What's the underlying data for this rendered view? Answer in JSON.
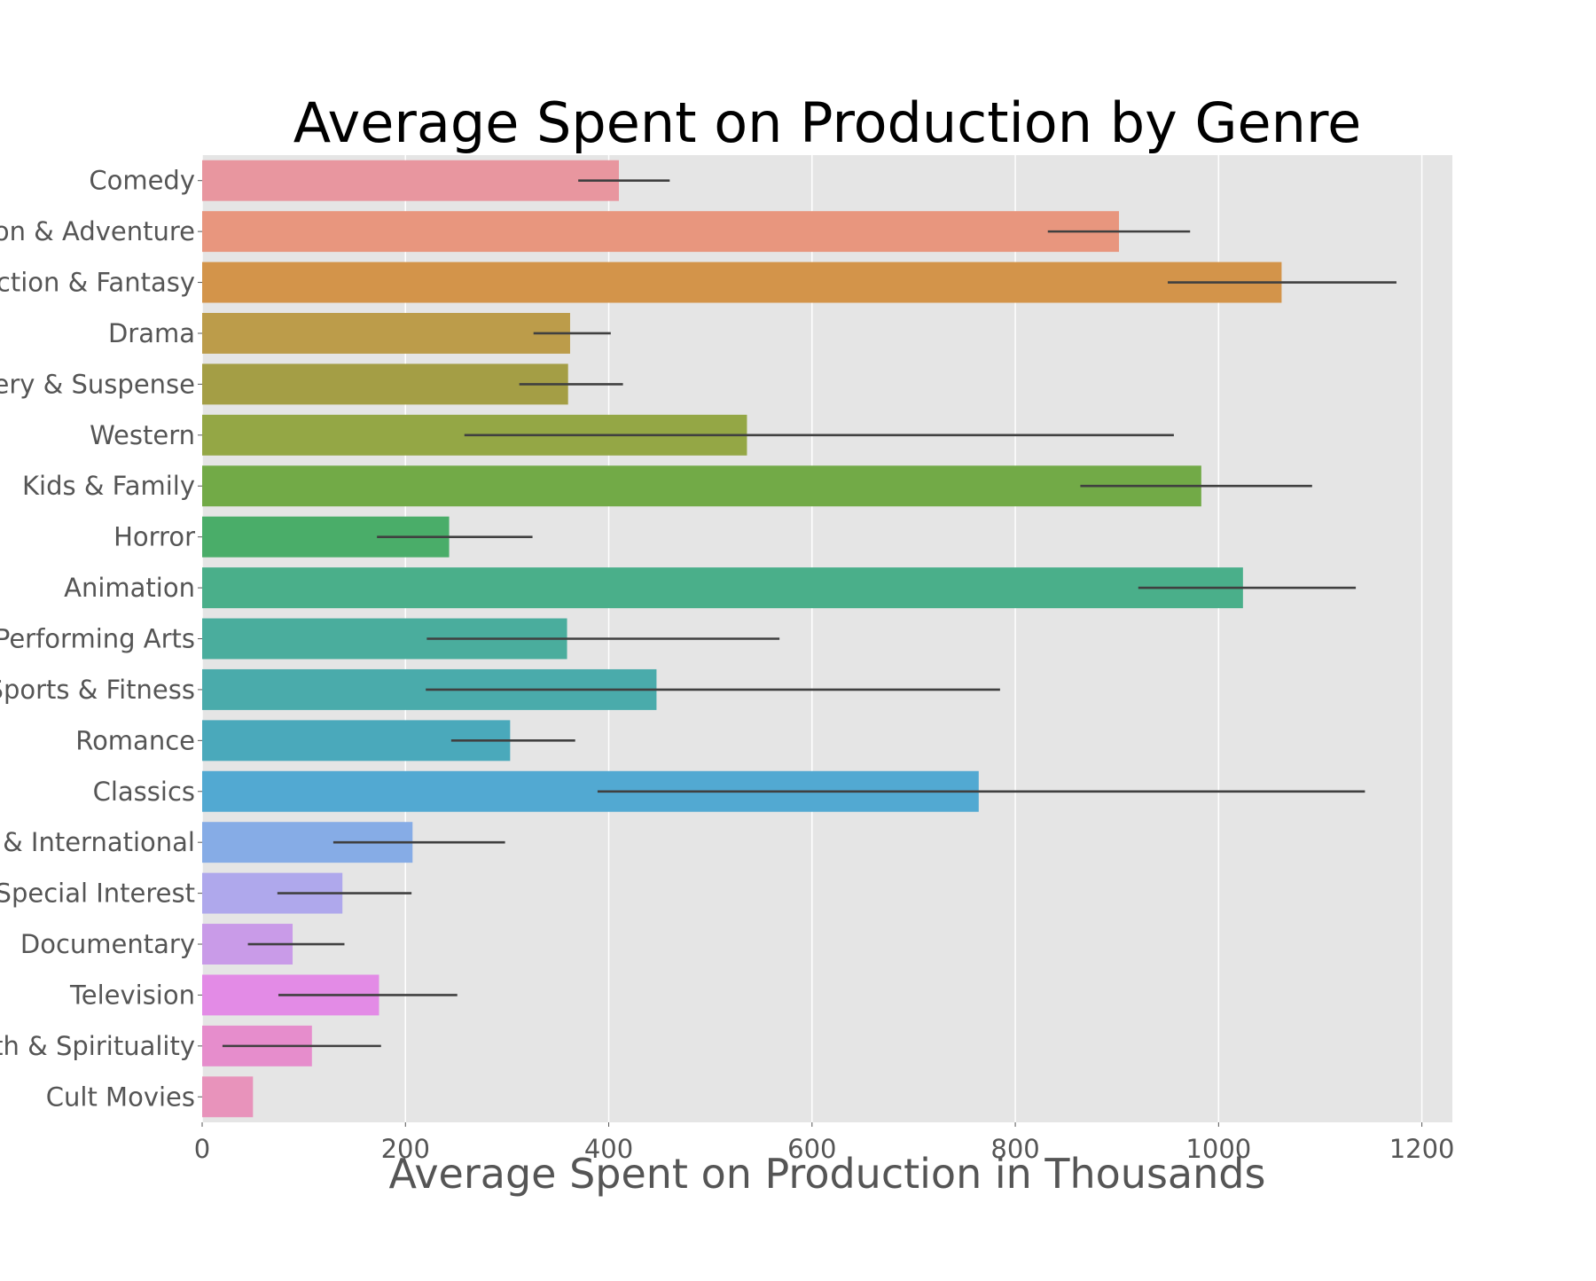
{
  "chart_data": {
    "type": "bar",
    "orientation": "horizontal",
    "title": "Average Spent on Production by Genre",
    "xlabel": "Average Spent on Production in Thousands",
    "ylabel": "",
    "xlim": [
      0,
      1230
    ],
    "xticks": [
      0,
      200,
      400,
      600,
      800,
      1000,
      1200
    ],
    "grid": true,
    "legend": "none",
    "categories": [
      "Comedy",
      "Action & Adventure",
      "Science Fiction & Fantasy",
      "Drama",
      "Mystery & Suspense",
      "Western",
      "Kids & Family",
      "Horror",
      "Animation",
      "Musical & Performing Arts",
      "Sports & Fitness",
      "Romance",
      "Classics",
      "Art House & International",
      "Special Interest",
      "Documentary",
      "Television",
      "Faith & Spirituality",
      "Cult Movies"
    ],
    "values": [
      410,
      902,
      1062,
      362,
      360,
      536,
      983,
      243,
      1024,
      359,
      447,
      303,
      764,
      207,
      138,
      89,
      174,
      108,
      50
    ],
    "error_low": [
      370,
      832,
      950,
      326,
      312,
      258,
      864,
      172,
      921,
      221,
      220,
      245,
      389,
      129,
      74,
      45,
      75,
      20,
      null
    ],
    "error_high": [
      460,
      972,
      1175,
      402,
      414,
      956,
      1092,
      325,
      1135,
      568,
      785,
      367,
      1144,
      298,
      206,
      140,
      251,
      176,
      null
    ],
    "colors": [
      "#e8969f",
      "#e8967e",
      "#d3944a",
      "#bc9c4a",
      "#a49e45",
      "#94a745",
      "#72aa47",
      "#4aad69",
      "#4aaf8a",
      "#4aad9d",
      "#4aabab",
      "#4aa9bb",
      "#52a9d2",
      "#86ace6",
      "#afa8ec",
      "#c99be8",
      "#e38be6",
      "#e68dcc",
      "#e893bb"
    ],
    "plot_bg": "#e5e5e5",
    "gridline_color": "#ffffff",
    "errorbar_color": "#404040",
    "title_color": "#000000",
    "label_color": "#555555"
  }
}
